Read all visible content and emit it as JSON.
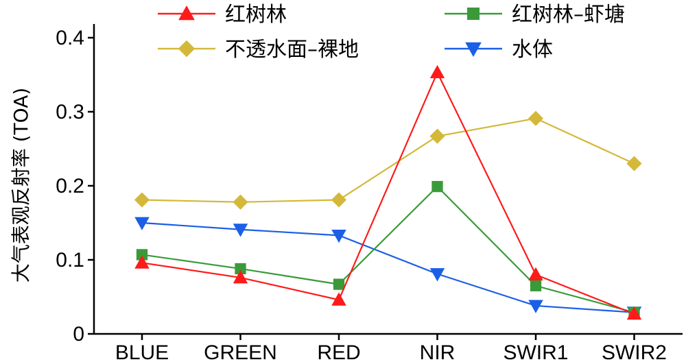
{
  "chart_data": {
    "type": "line",
    "categories": [
      "BLUE",
      "GREEN",
      "RED",
      "NIR",
      "SWIR1",
      "SWIR2"
    ],
    "ylabel": "大气表观反射率 (TOA)",
    "ylim": [
      0,
      0.4
    ],
    "yticks": [
      "0",
      "0.1",
      "0.2",
      "0.3",
      "0.4"
    ],
    "grid": false,
    "legend_position": "top",
    "series": [
      {
        "name": "红树林",
        "color": "#ff1a1a",
        "marker": "triangle-up",
        "values": [
          0.096,
          0.076,
          0.046,
          0.353,
          0.08,
          0.027
        ]
      },
      {
        "name": "红树林–虾塘",
        "color": "#3a9a3a",
        "marker": "square",
        "values": [
          0.107,
          0.088,
          0.067,
          0.199,
          0.065,
          0.029
        ]
      },
      {
        "name": "不透水面–裸地",
        "color": "#d4b83a",
        "marker": "diamond",
        "values": [
          0.181,
          0.178,
          0.181,
          0.267,
          0.291,
          0.23
        ]
      },
      {
        "name": "水体",
        "color": "#1a5fe6",
        "marker": "triangle-down",
        "values": [
          0.15,
          0.141,
          0.133,
          0.081,
          0.038,
          0.029
        ]
      }
    ]
  }
}
